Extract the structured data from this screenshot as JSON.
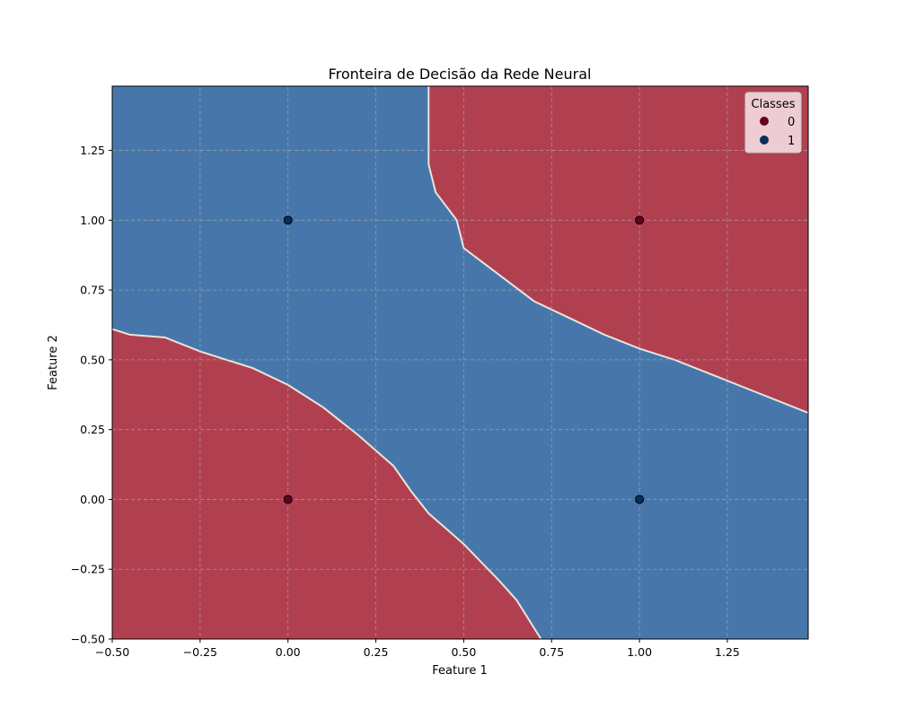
{
  "chart_data": {
    "type": "contour-scatter",
    "title": "Fronteira de Decisão da Rede Neural",
    "xlabel": "Feature 1",
    "ylabel": "Feature 2",
    "xlim": [
      -0.5,
      1.48
    ],
    "ylim": [
      -0.5,
      1.48
    ],
    "xticks": [
      -0.5,
      -0.25,
      0.0,
      0.25,
      0.5,
      0.75,
      1.0,
      1.25
    ],
    "xtick_labels": [
      "−0.50",
      "−0.25",
      "0.00",
      "0.25",
      "0.50",
      "0.75",
      "1.00",
      "1.25"
    ],
    "yticks": [
      -0.5,
      -0.25,
      0.0,
      0.25,
      0.5,
      0.75,
      1.0,
      1.25
    ],
    "ytick_labels": [
      "−0.50",
      "−0.25",
      "0.00",
      "0.25",
      "0.50",
      "0.75",
      "1.00",
      "1.25"
    ],
    "grid": true,
    "region_colors": {
      "class_0": "#b04050",
      "class_1": "#4777aa"
    },
    "regions": {
      "top_right_class_0": [
        [
          0.4,
          1.48
        ],
        [
          0.4,
          1.2
        ],
        [
          0.42,
          1.1
        ],
        [
          0.48,
          1.0
        ],
        [
          0.5,
          0.9
        ],
        [
          0.7,
          0.71
        ],
        [
          0.8,
          0.65
        ],
        [
          0.9,
          0.59
        ],
        [
          1.0,
          0.54
        ],
        [
          1.1,
          0.5
        ],
        [
          1.2,
          0.45
        ],
        [
          1.3,
          0.4
        ],
        [
          1.4,
          0.35
        ],
        [
          1.48,
          0.31
        ],
        [
          1.48,
          1.48
        ]
      ],
      "bottom_left_class_0": [
        [
          -0.5,
          -0.5
        ],
        [
          -0.5,
          0.61
        ],
        [
          -0.45,
          0.59
        ],
        [
          -0.35,
          0.58
        ],
        [
          -0.25,
          0.53
        ],
        [
          -0.2,
          0.51
        ],
        [
          -0.1,
          0.47
        ],
        [
          0.0,
          0.41
        ],
        [
          0.1,
          0.33
        ],
        [
          0.2,
          0.23
        ],
        [
          0.3,
          0.12
        ],
        [
          0.35,
          0.03
        ],
        [
          0.4,
          -0.05
        ],
        [
          0.5,
          -0.16
        ],
        [
          0.6,
          -0.29
        ],
        [
          0.65,
          -0.36
        ],
        [
          0.7,
          -0.46
        ],
        [
          0.72,
          -0.5
        ]
      ]
    },
    "legend": {
      "title": "Classes",
      "position": "top-right",
      "entries": [
        "0",
        "1"
      ]
    },
    "series": [
      {
        "name": "0",
        "color": "#67001f",
        "points": [
          [
            0.0,
            0.0
          ],
          [
            1.0,
            1.0
          ]
        ]
      },
      {
        "name": "1",
        "color": "#053061",
        "points": [
          [
            0.0,
            1.0
          ],
          [
            1.0,
            0.0
          ]
        ]
      }
    ]
  }
}
